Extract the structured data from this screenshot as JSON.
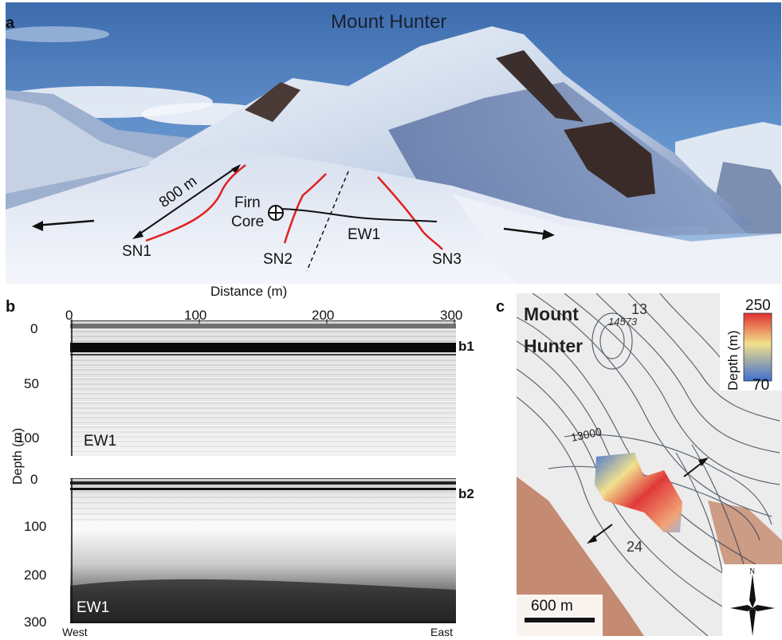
{
  "panel_a": {
    "letter": "a",
    "title": "Mount Hunter",
    "distance_label": "800 m",
    "firn_core_label_1": "Firn",
    "firn_core_label_2": "Core",
    "lines": [
      "SN1",
      "SN2",
      "SN3",
      "EW1"
    ],
    "colors": {
      "sn_line": "#e02020",
      "ew_line": "#111111"
    }
  },
  "panel_b": {
    "letter": "b",
    "x_label": "Distance (m)",
    "x_ticks": [
      "0",
      "100",
      "200",
      "300"
    ],
    "y_label": "Depth (m)",
    "b1": {
      "label": "b1",
      "profile": "EW1",
      "y_ticks": [
        "0",
        "50",
        "100"
      ]
    },
    "b2": {
      "label": "b2",
      "profile": "EW1",
      "y_ticks": [
        "0",
        "100",
        "200",
        "300"
      ]
    },
    "west_label": "West",
    "east_label": "East"
  },
  "panel_c": {
    "letter": "c",
    "place_1": "Mount",
    "place_2": "Hunter",
    "spot_height": "14573",
    "peak_mark": "13",
    "contour_label_1": "13000",
    "contour_label_2": "24",
    "colorbar_max": "250",
    "colorbar_min": "70",
    "colorbar_label": "Depth (m)",
    "scale_label": "600 m",
    "north_label": "N",
    "colors": {
      "high": "#e03030",
      "mid": "#f2e08a",
      "low": "#3f6fd0"
    }
  }
}
